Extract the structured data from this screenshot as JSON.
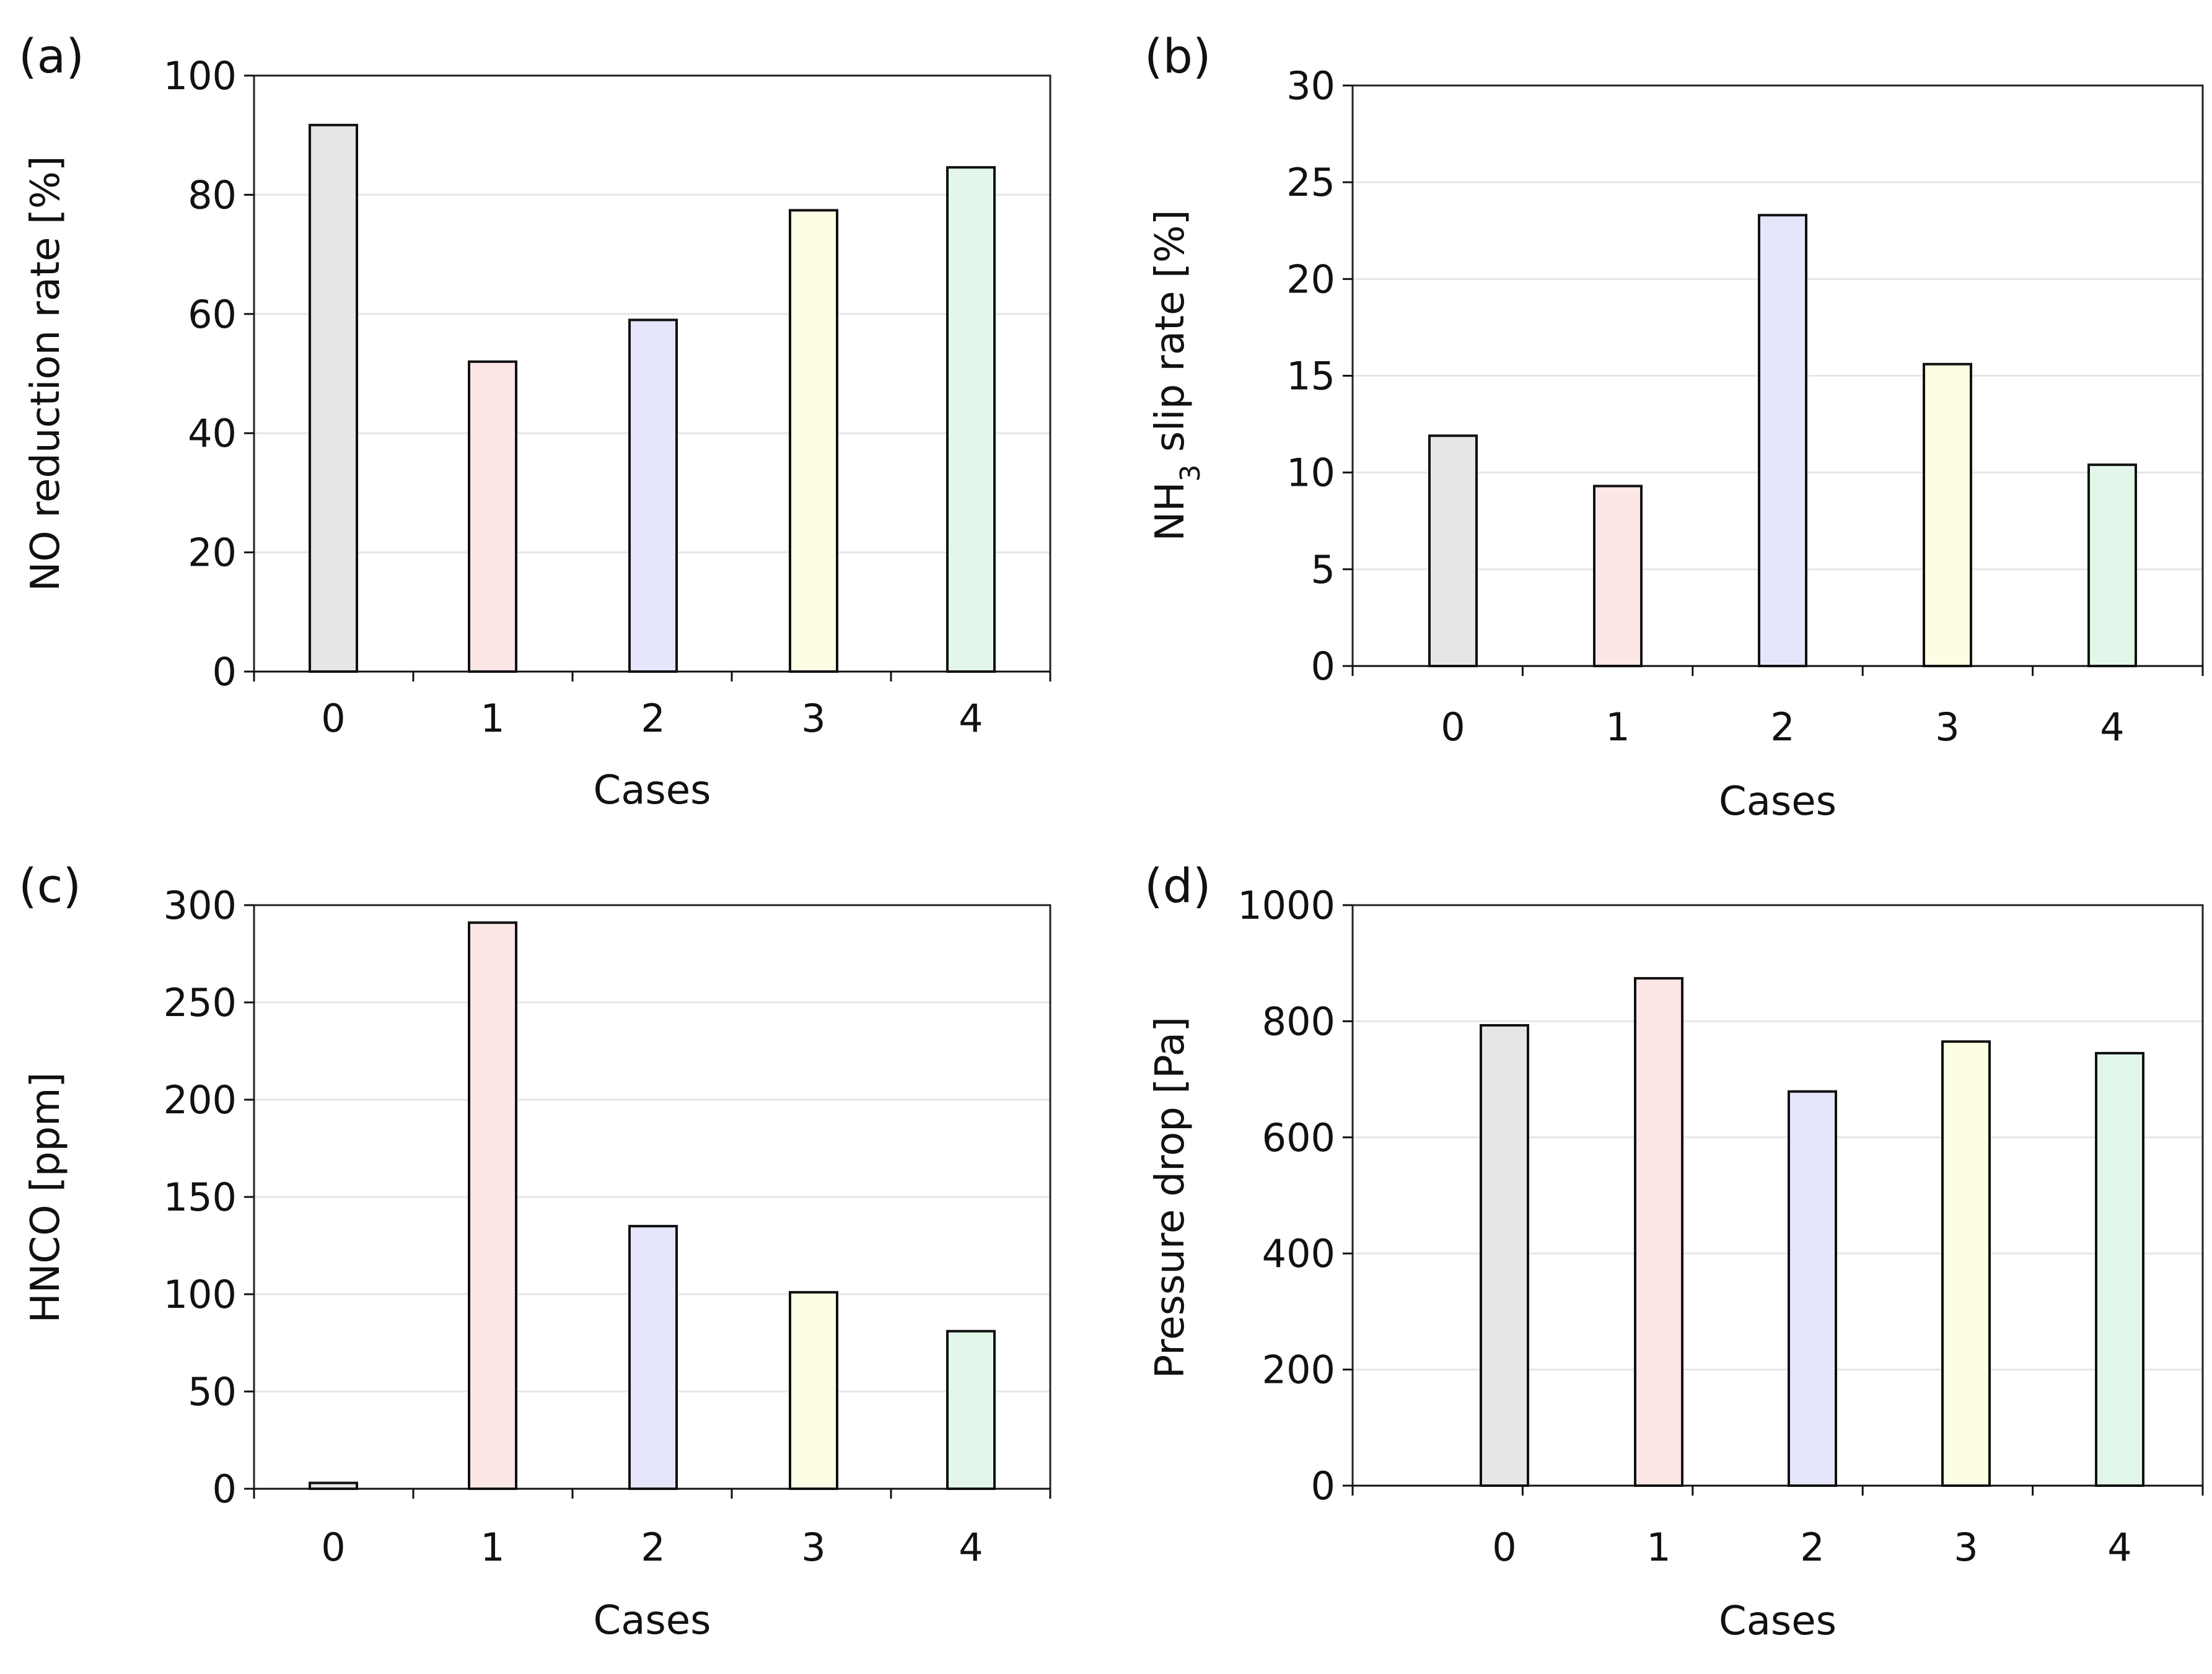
{
  "chart_data": [
    {
      "type": "bar",
      "panel_label": "(a)",
      "title": "",
      "xlabel": "Cases",
      "ylabel": "NO reduction rate [%]",
      "ylabel_parts": [
        {
          "text": "NO reduction rate [%]"
        }
      ],
      "categories": [
        "0",
        "1",
        "2",
        "3",
        "4"
      ],
      "values": [
        91.7,
        52.0,
        59.0,
        77.4,
        84.6
      ],
      "ylim": [
        0,
        100
      ],
      "yticks": [
        0,
        20,
        40,
        60,
        80,
        100
      ],
      "grid": true
    },
    {
      "type": "bar",
      "panel_label": "(b)",
      "title": "",
      "xlabel": "Cases",
      "ylabel": "NH3 slip rate [%]",
      "ylabel_parts": [
        {
          "text": "NH"
        },
        {
          "text": "3",
          "sub": true
        },
        {
          "text": " slip rate [%]"
        }
      ],
      "categories": [
        "0",
        "1",
        "2",
        "3",
        "4"
      ],
      "values": [
        11.9,
        9.3,
        23.3,
        15.6,
        10.4
      ],
      "ylim": [
        0,
        30
      ],
      "yticks": [
        0,
        5,
        10,
        15,
        20,
        25,
        30
      ],
      "grid": true
    },
    {
      "type": "bar",
      "panel_label": "(c)",
      "title": "",
      "xlabel": "Cases",
      "ylabel": "HNCO [ppm]",
      "ylabel_parts": [
        {
          "text": "HNCO [ppm]"
        }
      ],
      "categories": [
        "0",
        "1",
        "2",
        "3",
        "4"
      ],
      "values": [
        3,
        291,
        135,
        101,
        81
      ],
      "ylim": [
        0,
        300
      ],
      "yticks": [
        0,
        50,
        100,
        150,
        200,
        250,
        300
      ],
      "grid": true
    },
    {
      "type": "bar",
      "panel_label": "(d)",
      "title": "",
      "xlabel": "Cases",
      "ylabel": "Pressure drop [Pa]",
      "ylabel_parts": [
        {
          "text": "Pressure drop [Pa]"
        }
      ],
      "categories": [
        "0",
        "1",
        "2",
        "3",
        "4"
      ],
      "values": [
        793,
        874,
        679,
        765,
        745
      ],
      "ylim": [
        0,
        1000
      ],
      "yticks": [
        0,
        200,
        400,
        600,
        800,
        1000
      ],
      "grid": true
    }
  ],
  "bar_colors": [
    "#e6e6e6",
    "#fde6e6",
    "#e5e6fb",
    "#fdfde4",
    "#e3f6ea"
  ],
  "colors": {
    "grid": "#e6e6e6",
    "axis": "#111111",
    "frame": "#222222",
    "text": "#111111",
    "background": "#ffffff"
  }
}
